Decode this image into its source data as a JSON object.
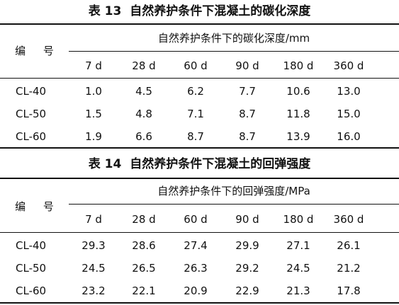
{
  "tables": [
    {
      "number": "表 13",
      "title": "自然养护条件下混凝土的碳化深度",
      "id_header": "编 号",
      "span_header": "自然养护条件下的碳化深度/mm",
      "ages": [
        "7 d",
        "28 d",
        "60 d",
        "90 d",
        "180 d",
        "360 d"
      ],
      "rows": [
        {
          "id": "CL-40",
          "values": [
            "1.0",
            "4.5",
            "6.2",
            "7.7",
            "10.6",
            "13.0"
          ]
        },
        {
          "id": "CL-50",
          "values": [
            "1.5",
            "4.8",
            "7.1",
            "8.7",
            "11.8",
            "15.0"
          ]
        },
        {
          "id": "CL-60",
          "values": [
            "1.9",
            "6.6",
            "8.7",
            "8.7",
            "13.9",
            "16.0"
          ]
        }
      ]
    },
    {
      "number": "表 14",
      "title": "自然养护条件下混凝土的回弹强度",
      "id_header": "编 号",
      "span_header": "自然养护条件下的回弹强度/MPa",
      "ages": [
        "7 d",
        "28 d",
        "60 d",
        "90 d",
        "180 d",
        "360 d"
      ],
      "rows": [
        {
          "id": "CL-40",
          "values": [
            "29.3",
            "28.6",
            "27.4",
            "29.9",
            "27.1",
            "26.1"
          ]
        },
        {
          "id": "CL-50",
          "values": [
            "24.5",
            "26.5",
            "26.3",
            "29.2",
            "24.5",
            "21.2"
          ]
        },
        {
          "id": "CL-60",
          "values": [
            "23.2",
            "22.1",
            "20.9",
            "22.9",
            "21.3",
            "17.8"
          ]
        }
      ]
    }
  ]
}
